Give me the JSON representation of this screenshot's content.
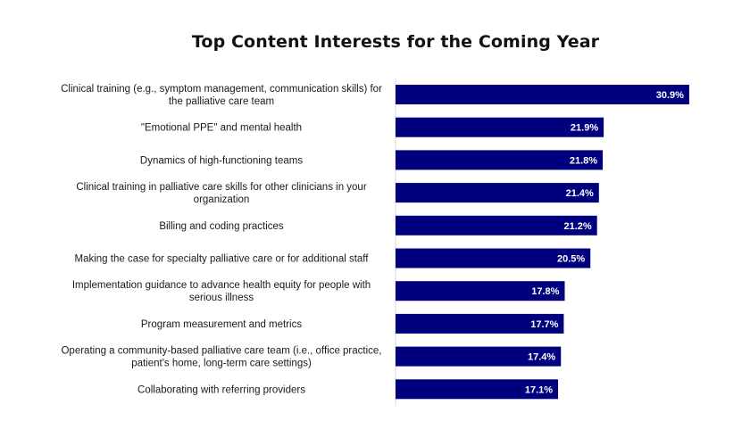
{
  "chart_data": {
    "type": "bar",
    "orientation": "horizontal",
    "title": "Top Content Interests for the Coming Year",
    "xlabel": "",
    "ylabel": "",
    "unit": "%",
    "xlim": [
      0,
      31
    ],
    "grid": false,
    "legend": "none",
    "bar_color": "#00007f",
    "categories": [
      "Clinical training (e.g., symptom management, communication skills) for the palliative care team",
      "\"Emotional PPE\" and mental health",
      "Dynamics of high-functioning teams",
      "Clinical training in palliative care skills for other clinicians in your organization",
      "Billing and coding practices",
      "Making the case for specialty palliative care or for additional staff",
      "Implementation guidance to advance health equity for people with serious illness",
      "Program measurement and metrics",
      "Operating a community-based palliative care team (i.e., office practice, patient's home, long-term care settings)",
      "Collaborating with referring providers"
    ],
    "category_lines": [
      [
        "Clinical training (e.g., symptom management, communication skills) for",
        "the palliative care team"
      ],
      [
        "\"Emotional PPE\" and mental health"
      ],
      [
        "Dynamics of high-functioning teams"
      ],
      [
        "Clinical training in palliative care skills for other clinicians in your",
        "organization"
      ],
      [
        "Billing and coding practices"
      ],
      [
        "Making the case for specialty palliative care or for additional staff"
      ],
      [
        "Implementation guidance to advance health equity for people with",
        "serious illness"
      ],
      [
        "Program measurement and metrics"
      ],
      [
        "Operating a community-based palliative care team (i.e., office practice,",
        "patient's home, long-term care settings)"
      ],
      [
        "Collaborating with referring providers"
      ]
    ],
    "values": [
      30.9,
      21.9,
      21.8,
      21.4,
      21.2,
      20.5,
      17.8,
      17.7,
      17.4,
      17.1
    ],
    "value_labels": [
      "30.9%",
      "21.9%",
      "21.8%",
      "21.4%",
      "21.2%",
      "20.5%",
      "17.8%",
      "17.7%",
      "17.4%",
      "17.1%"
    ]
  }
}
